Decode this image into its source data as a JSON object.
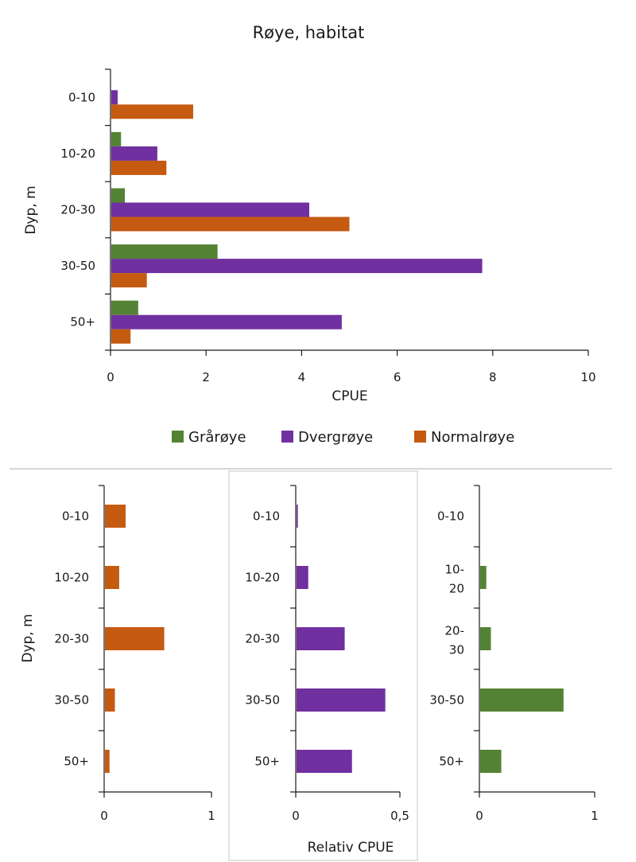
{
  "chart_data": [
    {
      "type": "bar",
      "orientation": "horizontal",
      "title": "Røye, habitat",
      "xlabel": "CPUE",
      "ylabel": "Dyp, m",
      "categories": [
        "0-10",
        "10-20",
        "20-30",
        "30-50",
        "50+"
      ],
      "xlim": [
        0,
        10
      ],
      "xticks": [
        "0",
        "2",
        "4",
        "6",
        "8",
        "10"
      ],
      "series": [
        {
          "name": "Grårøye",
          "color": "#548235",
          "values": [
            0,
            0.22,
            0.3,
            2.24,
            0.58
          ]
        },
        {
          "name": "Dvergrøye",
          "color": "#7030a0",
          "values": [
            0.15,
            0.98,
            4.16,
            7.78,
            4.84
          ]
        },
        {
          "name": "Normalrøye",
          "color": "#c55a11",
          "values": [
            1.73,
            1.17,
            5.0,
            0.76,
            0.42
          ]
        }
      ],
      "legend": "bottom"
    },
    {
      "type": "bar",
      "orientation": "horizontal",
      "ylabel": "Dyp, m",
      "categories": [
        "0-10",
        "10-20",
        "20-30",
        "30-50",
        "50+"
      ],
      "xlim": [
        0,
        1
      ],
      "xticks": [
        "0",
        "1"
      ],
      "series": [
        {
          "color": "#c55a11",
          "values": [
            0.2,
            0.14,
            0.56,
            0.1,
            0.05
          ]
        }
      ]
    },
    {
      "type": "bar",
      "orientation": "horizontal",
      "xlabel": "Relativ CPUE",
      "categories": [
        "0-10",
        "10-20",
        "20-30",
        "30-50",
        "50+"
      ],
      "xlim": [
        0,
        0.5
      ],
      "xticks": [
        "0",
        "0,5"
      ],
      "series": [
        {
          "color": "#7030a0",
          "values": [
            0.01,
            0.06,
            0.235,
            0.43,
            0.27
          ]
        }
      ]
    },
    {
      "type": "bar",
      "orientation": "horizontal",
      "categories": [
        "0-10",
        "10-20",
        "20-30",
        "30-50",
        "50+"
      ],
      "category_lines": [
        [
          "0-10"
        ],
        [
          "10-",
          "20"
        ],
        [
          "20-",
          "30"
        ],
        [
          "30-50"
        ],
        [
          "50+"
        ]
      ],
      "xlim": [
        0,
        1
      ],
      "xticks": [
        "0",
        "1"
      ],
      "series": [
        {
          "color": "#548235",
          "values": [
            0,
            0.06,
            0.1,
            0.73,
            0.19
          ]
        }
      ]
    }
  ]
}
